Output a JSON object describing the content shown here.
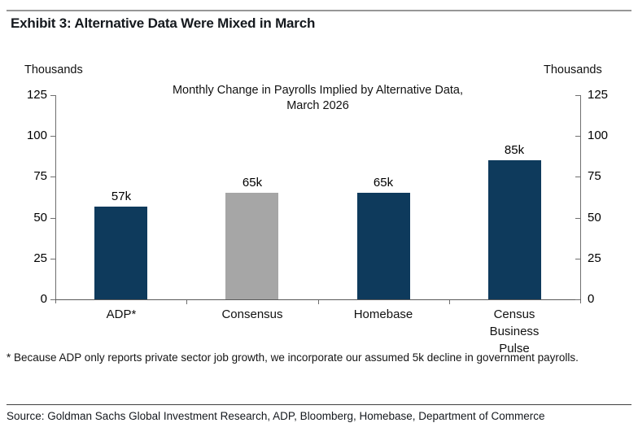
{
  "exhibit_title": "Exhibit 3: Alternative Data Were Mixed in March",
  "footnote": "* Because ADP only reports private sector job growth, we incorporate our assumed 5k decline in government payrolls.",
  "source_line": "Source: Goldman Sachs Global Investment Research, ADP, Bloomberg, Homebase, Department of Commerce",
  "chart_data": {
    "type": "bar",
    "title": "Monthly Change in Payrolls Implied by Alternative Data, March 2026",
    "title_lines": [
      "Monthly Change in Payrolls Implied by Alternative Data,",
      "March 2026"
    ],
    "left_axis_unit": "Thousands",
    "right_axis_unit": "Thousands",
    "ylim": [
      0,
      125
    ],
    "yticks": [
      0,
      25,
      50,
      75,
      100,
      125
    ],
    "grid": false,
    "legend": "none",
    "categories": [
      "ADP*",
      "Consensus",
      "Homebase",
      "Census Business Pulse"
    ],
    "category_label_lines": [
      [
        "ADP*"
      ],
      [
        "Consensus"
      ],
      [
        "Homebase"
      ],
      [
        "Census",
        "Business",
        "Pulse"
      ]
    ],
    "values": [
      57,
      65,
      65,
      85
    ],
    "value_labels": [
      "57k",
      "65k",
      "65k",
      "85k"
    ],
    "bar_colors": [
      "#0E3A5C",
      "#A6A6A6",
      "#0E3A5C",
      "#0E3A5C"
    ],
    "colors": {
      "navy": "#0E3A5C",
      "gray": "#A6A6A6",
      "axis": "#6f6f6f"
    }
  }
}
